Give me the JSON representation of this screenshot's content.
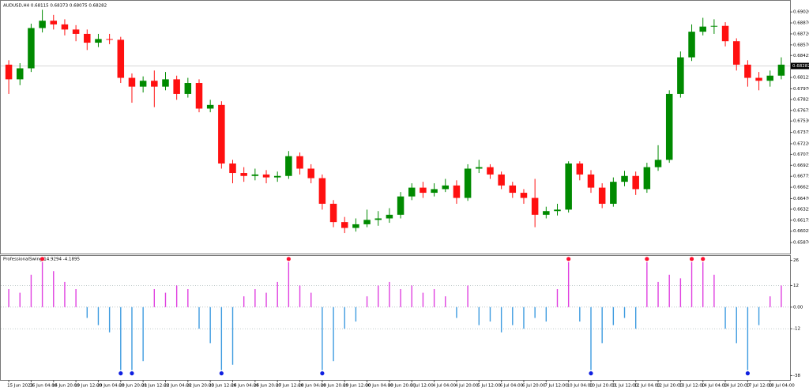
{
  "chart_data": [
    {
      "type": "candlestick",
      "title": "AUDUSD,H4 0.68115 0.68373 0.68075 0.68282",
      "up_color": "#008a00",
      "down_color": "#ff1010",
      "categories": [
        "15 Jun 2023",
        null,
        "16 Jun 04:00",
        null,
        "16 Jun 20:00",
        null,
        "19 Jun 12:00",
        null,
        "20 Jun 04:00",
        null,
        "20 Jun 20:00",
        null,
        "21 Jun 12:00",
        null,
        "22 Jun 04:00",
        null,
        "22 Jun 20:00",
        null,
        "23 Jun 12:00",
        null,
        "26 Jun 04:00",
        null,
        "26 Jun 20:00",
        null,
        "27 Jun 12:00",
        null,
        "28 Jun 04:00",
        null,
        "28 Jun 20:00",
        null,
        "29 Jun 12:00",
        null,
        "30 Jun 04:00",
        null,
        "30 Jun 20:00",
        null,
        "3 Jul 12:00",
        null,
        "4 Jul 04:00",
        null,
        "4 Jul 20:00",
        null,
        "5 Jul 12:00",
        null,
        "6 Jul 04:00",
        null,
        "6 Jul 20:00",
        null,
        "7 Jul 12:00",
        null,
        "10 Jul 04:00",
        null,
        "10 Jul 20:00",
        null,
        "11 Jul 12:00",
        null,
        "12 Jul 04:00",
        null,
        "12 Jul 20:00",
        null,
        "13 Jul 12:00",
        null,
        "14 Jul 04:00",
        null,
        "14 Jul 20:00",
        null,
        "17 Jul 12:00",
        null,
        "18 Jul 04:00",
        null
      ],
      "open": [
        0.683,
        0.681,
        0.6825,
        0.688,
        0.689,
        0.6885,
        0.6878,
        0.6872,
        0.686,
        0.6865,
        0.6864,
        0.6812,
        0.68,
        0.6808,
        0.68,
        0.681,
        0.679,
        0.6805,
        0.677,
        0.6775,
        0.6695,
        0.6682,
        0.6678,
        0.668,
        0.6676,
        0.6678,
        0.6705,
        0.6688,
        0.6675,
        0.664,
        0.6615,
        0.6607,
        0.6612,
        0.6618,
        0.662,
        0.6625,
        0.665,
        0.6662,
        0.6655,
        0.666,
        0.6665,
        0.6648,
        0.6688,
        0.669,
        0.668,
        0.6665,
        0.6655,
        0.6648,
        0.6625,
        0.663,
        0.6632,
        0.6695,
        0.668,
        0.6662,
        0.664,
        0.667,
        0.6678,
        0.666,
        0.669,
        0.67,
        0.679,
        0.684,
        0.6875,
        0.6882,
        0.6883,
        0.6862,
        0.683,
        0.6812,
        0.6808,
        0.6815
      ],
      "high": [
        0.6836,
        0.6832,
        0.6886,
        0.6905,
        0.6898,
        0.6892,
        0.6884,
        0.6878,
        0.6872,
        0.6872,
        0.6868,
        0.6818,
        0.6814,
        0.6822,
        0.682,
        0.6815,
        0.6812,
        0.681,
        0.6782,
        0.678,
        0.67,
        0.669,
        0.6688,
        0.6686,
        0.6684,
        0.6712,
        0.671,
        0.6694,
        0.668,
        0.6645,
        0.6622,
        0.662,
        0.6632,
        0.663,
        0.6634,
        0.6656,
        0.6668,
        0.667,
        0.6668,
        0.6674,
        0.6672,
        0.6694,
        0.67,
        0.6694,
        0.6684,
        0.667,
        0.666,
        0.6674,
        0.6636,
        0.664,
        0.6698,
        0.6698,
        0.6686,
        0.6668,
        0.6676,
        0.6685,
        0.6684,
        0.6696,
        0.672,
        0.6795,
        0.6848,
        0.6885,
        0.6894,
        0.6892,
        0.6888,
        0.6866,
        0.6836,
        0.682,
        0.6822,
        0.684
      ],
      "low": [
        0.679,
        0.6802,
        0.682,
        0.6874,
        0.6878,
        0.687,
        0.6862,
        0.685,
        0.6854,
        0.6858,
        0.6805,
        0.6778,
        0.6792,
        0.6772,
        0.6795,
        0.6782,
        0.6785,
        0.6765,
        0.6765,
        0.6688,
        0.6668,
        0.667,
        0.6672,
        0.6668,
        0.667,
        0.6674,
        0.668,
        0.6668,
        0.6632,
        0.6608,
        0.66,
        0.6602,
        0.6608,
        0.661,
        0.6614,
        0.662,
        0.6645,
        0.6648,
        0.665,
        0.6656,
        0.664,
        0.6644,
        0.6682,
        0.6674,
        0.666,
        0.6648,
        0.664,
        0.6608,
        0.662,
        0.6624,
        0.6628,
        0.6672,
        0.6655,
        0.6634,
        0.6636,
        0.6664,
        0.6652,
        0.6655,
        0.6685,
        0.6696,
        0.6785,
        0.6835,
        0.687,
        0.6872,
        0.6855,
        0.6822,
        0.68,
        0.6795,
        0.68,
        0.681
      ],
      "close": [
        0.681,
        0.6825,
        0.688,
        0.689,
        0.6885,
        0.6878,
        0.6872,
        0.686,
        0.6865,
        0.6864,
        0.6812,
        0.68,
        0.6808,
        0.68,
        0.681,
        0.679,
        0.6805,
        0.677,
        0.6775,
        0.6695,
        0.6682,
        0.6678,
        0.668,
        0.6676,
        0.6678,
        0.6705,
        0.6688,
        0.6675,
        0.664,
        0.6615,
        0.6607,
        0.6612,
        0.6618,
        0.662,
        0.6625,
        0.665,
        0.6662,
        0.6655,
        0.666,
        0.6665,
        0.6648,
        0.6688,
        0.669,
        0.668,
        0.6665,
        0.6655,
        0.6648,
        0.6625,
        0.663,
        0.6632,
        0.6695,
        0.668,
        0.6662,
        0.664,
        0.667,
        0.6678,
        0.666,
        0.669,
        0.67,
        0.679,
        0.684,
        0.6875,
        0.6882,
        0.6883,
        0.6862,
        0.683,
        0.6812,
        0.6808,
        0.6815,
        0.683
      ],
      "ylim": [
        0.6572,
        0.6914
      ],
      "yticks": [
        {
          "value": 0.6902,
          "label": "0.69020"
        },
        {
          "value": 0.6887,
          "label": "0.68870"
        },
        {
          "value": 0.6872,
          "label": "0.68720"
        },
        {
          "value": 0.6857,
          "label": "0.68570"
        },
        {
          "value": 0.68425,
          "label": "0.68425"
        },
        {
          "value": 0.68125,
          "label": "0.68125"
        },
        {
          "value": 0.6797,
          "label": "0.67970"
        },
        {
          "value": 0.67825,
          "label": "0.67825"
        },
        {
          "value": 0.67675,
          "label": "0.67675"
        },
        {
          "value": 0.6753,
          "label": "0.67530"
        },
        {
          "value": 0.67375,
          "label": "0.67375"
        },
        {
          "value": 0.6722,
          "label": "0.67220"
        },
        {
          "value": 0.67075,
          "label": "0.67075"
        },
        {
          "value": 0.66925,
          "label": "0.66925"
        },
        {
          "value": 0.66775,
          "label": "0.66775"
        },
        {
          "value": 0.66625,
          "label": "0.66625"
        },
        {
          "value": 0.6647,
          "label": "0.66470"
        },
        {
          "value": 0.66325,
          "label": "0.66325"
        },
        {
          "value": 0.66175,
          "label": "0.66175"
        },
        {
          "value": 0.66025,
          "label": "0.66025"
        },
        {
          "value": 0.6587,
          "label": "0.65870"
        }
      ],
      "last_price": {
        "value": 0.68282,
        "label": "0.68282"
      }
    },
    {
      "type": "histogram",
      "title": "ProfessionalSwing 14.9294 -4.1895",
      "pos_color": "#e040e0",
      "neg_color": "#3d9be0",
      "up_dot_color": "#ff1030",
      "down_dot_color": "#1020e0",
      "values": [
        10,
        8,
        18,
        25,
        20,
        14,
        10,
        -6,
        -10,
        -14,
        -35,
        -35,
        -30,
        10,
        8,
        12,
        10,
        -12,
        -20,
        -35,
        -32,
        6,
        10,
        8,
        14,
        25,
        12,
        8,
        -35,
        -30,
        -12,
        -8,
        6,
        12,
        14,
        10,
        12,
        8,
        10,
        6,
        -6,
        12,
        -10,
        -8,
        -14,
        -10,
        -12,
        -6,
        -8,
        10,
        25,
        -8,
        -35,
        -20,
        -10,
        -6,
        -12,
        25,
        14,
        18,
        16,
        25,
        25,
        18,
        -12,
        -20,
        -35,
        -10,
        6,
        12
      ],
      "up_dots": [
        3,
        25,
        50,
        57,
        61,
        62
      ],
      "down_dots": [
        10,
        11,
        19,
        28,
        52,
        66
      ],
      "ylim": [
        -40,
        28
      ],
      "yticks": [
        26,
        12,
        {
          "value": 0,
          "label": "0.00"
        },
        -12,
        -38
      ],
      "levels": [
        12,
        0,
        -12
      ]
    }
  ]
}
